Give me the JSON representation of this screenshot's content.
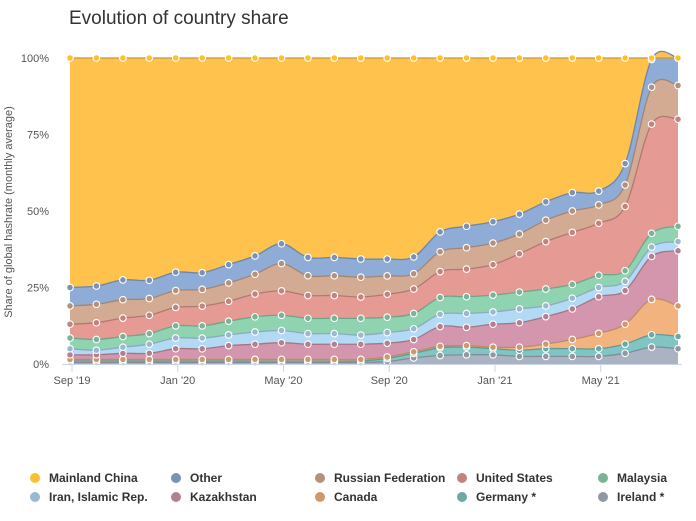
{
  "chart_data": {
    "type": "area",
    "stacking": "percent",
    "title": "Evolution of country share",
    "xlabel": "",
    "ylabel": "Share of global hashrate (monthly average)",
    "ylim": [
      0,
      100
    ],
    "yticks": [
      0,
      25,
      50,
      75,
      100
    ],
    "ytick_labels": [
      "0%",
      "25%",
      "50%",
      "75%",
      "100%"
    ],
    "x_ticks": [
      {
        "index": 0,
        "label": "Sep '19"
      },
      {
        "index": 4,
        "label": "Jan '20"
      },
      {
        "index": 8,
        "label": "May '20"
      },
      {
        "index": 12,
        "label": "Sep '20"
      },
      {
        "index": 16,
        "label": "Jan '21"
      },
      {
        "index": 20,
        "label": "May '21"
      }
    ],
    "x": [
      "Sep '19",
      "Oct '19",
      "Nov '19",
      "Dec '19",
      "Jan '20",
      "Feb '20",
      "Mar '20",
      "Apr '20",
      "May '20",
      "Jun '20",
      "Jul '20",
      "Aug '20",
      "Sep '20",
      "Oct '20",
      "Nov '20",
      "Dec '20",
      "Jan '21",
      "Feb '21",
      "Mar '21",
      "Apr '21",
      "May '21",
      "Jun '21",
      "Jul '21",
      "Aug '21"
    ],
    "series": [
      {
        "name": "Ireland *",
        "color": "#a9b3c1",
        "values": [
          0.5,
          0.5,
          0.5,
          0.5,
          0.5,
          0.5,
          0.5,
          0.5,
          0.5,
          0.5,
          0.5,
          0.5,
          0.8,
          2.0,
          2.8,
          3.0,
          3.0,
          2.5,
          2.5,
          2.5,
          2.5,
          3.5,
          5.5,
          5.0
        ]
      },
      {
        "name": "Germany *",
        "color": "#7fc6c2",
        "values": [
          0.5,
          0.5,
          0.5,
          0.5,
          0.5,
          0.5,
          0.5,
          0.5,
          0.5,
          0.5,
          0.5,
          0.5,
          1.0,
          1.5,
          2.5,
          2.5,
          2.0,
          2.0,
          2.5,
          2.5,
          2.5,
          3.0,
          4.0,
          4.0
        ]
      },
      {
        "name": "Canada",
        "color": "#f2b37f",
        "values": [
          0.5,
          0.5,
          0.5,
          0.5,
          0.5,
          0.5,
          0.5,
          0.5,
          0.5,
          0.5,
          0.5,
          0.5,
          0.5,
          0.5,
          0.5,
          0.5,
          0.5,
          1.0,
          1.5,
          3.0,
          5.0,
          6.5,
          11.5,
          10.0
        ]
      },
      {
        "name": "Kazakhstan",
        "color": "#d396ac",
        "values": [
          1.5,
          1.5,
          2.0,
          2.0,
          3.5,
          3.5,
          4.5,
          5.0,
          5.5,
          5.0,
          5.0,
          5.0,
          4.5,
          4.0,
          6.5,
          6.0,
          7.5,
          8.0,
          9.0,
          10.0,
          12.0,
          11.0,
          14.0,
          18.0
        ]
      },
      {
        "name": "Iran, Islamic Rep.",
        "color": "#b3daf5",
        "values": [
          2.0,
          1.5,
          2.0,
          3.0,
          3.5,
          3.5,
          3.5,
          4.0,
          4.0,
          3.5,
          3.5,
          3.0,
          3.5,
          3.5,
          4.0,
          4.5,
          4.0,
          4.5,
          3.5,
          3.5,
          3.0,
          3.0,
          3.0,
          3.0
        ]
      },
      {
        "name": "Malaysia",
        "color": "#8fd3b1",
        "values": [
          3.5,
          3.5,
          3.5,
          3.5,
          4.0,
          4.0,
          4.5,
          5.0,
          5.0,
          5.0,
          5.0,
          5.5,
          5.0,
          5.0,
          5.5,
          5.5,
          5.5,
          5.5,
          5.5,
          4.5,
          4.0,
          3.5,
          4.5,
          5.0
        ]
      },
      {
        "name": "United States",
        "color": "#e59a94",
        "values": [
          4.5,
          5.5,
          6.0,
          6.0,
          6.0,
          6.5,
          6.5,
          7.5,
          8.0,
          7.5,
          7.5,
          7.0,
          7.5,
          8.0,
          8.5,
          9.0,
          10.0,
          12.5,
          15.5,
          17.0,
          17.0,
          21.0,
          35.5,
          35.0
        ]
      },
      {
        "name": "Russian Federation",
        "color": "#d3ab92",
        "values": [
          6.0,
          6.0,
          6.0,
          5.5,
          5.5,
          5.5,
          6.0,
          6.5,
          9.0,
          6.5,
          6.5,
          6.5,
          6.0,
          5.0,
          6.5,
          7.0,
          7.0,
          6.5,
          7.0,
          7.0,
          6.0,
          7.0,
          12.0,
          11.0
        ]
      },
      {
        "name": "Other",
        "color": "#8eacd6",
        "values": [
          6.0,
          6.0,
          6.5,
          6.0,
          6.0,
          5.5,
          6.0,
          6.0,
          6.5,
          6.0,
          6.0,
          6.0,
          5.5,
          5.5,
          6.5,
          7.0,
          7.0,
          6.5,
          6.0,
          6.0,
          4.5,
          7.0,
          9.0,
          9.0
        ]
      },
      {
        "name": "Mainland China",
        "color": "#ffc34d",
        "values": [
          75.0,
          74.5,
          72.5,
          73.0,
          70.0,
          70.5,
          67.5,
          65.0,
          61.0,
          65.5,
          65.5,
          66.0,
          65.7,
          65.0,
          57.0,
          55.0,
          53.5,
          51.0,
          47.0,
          44.0,
          43.5,
          34.5,
          0.5,
          0.0
        ]
      }
    ],
    "legend_order": [
      "Mainland China",
      "Other",
      "Russian Federation",
      "United States",
      "Malaysia",
      "Iran, Islamic Rep.",
      "Kazakhstan",
      "Canada",
      "Germany *",
      "Ireland *"
    ],
    "legend_position": "bottom",
    "marker_color": "#ffc02f",
    "grid": true
  }
}
